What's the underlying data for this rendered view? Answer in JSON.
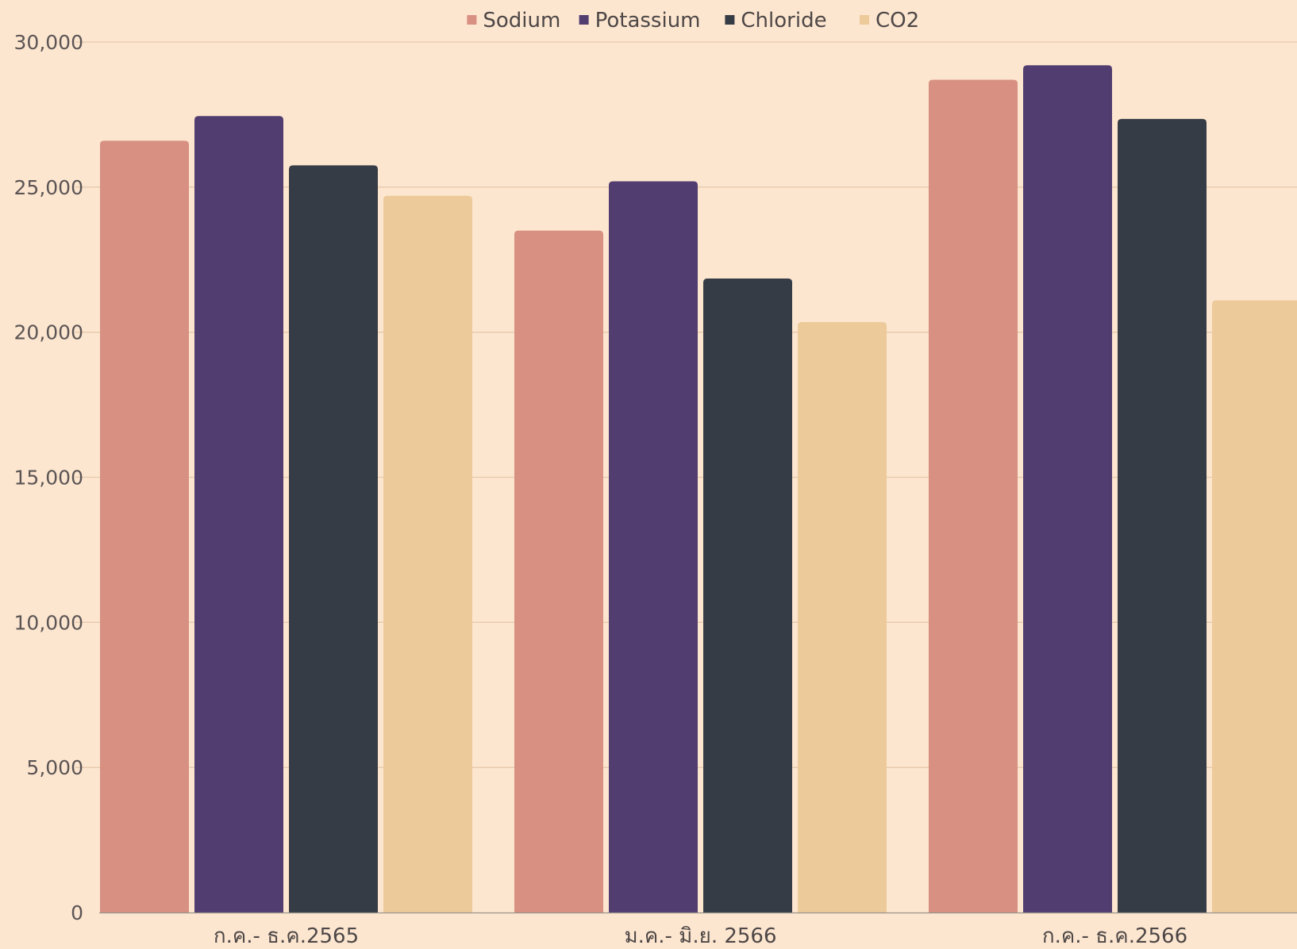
{
  "chart_data": {
    "type": "bar",
    "categories": [
      "ก.ค.- ธ.ค.2565",
      "ม.ค.- มิ.ย. 2566",
      "ก.ค.- ธ.ค.2566"
    ],
    "series": [
      {
        "name": "Sodium",
        "color": "#d79082",
        "values": [
          26600,
          23500,
          28700
        ]
      },
      {
        "name": "Potassium",
        "color": "#523d70",
        "values": [
          27450,
          25200,
          29200
        ]
      },
      {
        "name": "Chloride",
        "color": "#363c45",
        "values": [
          25750,
          21850,
          27350
        ]
      },
      {
        "name": "CO2",
        "color": "#ecca9a",
        "values": [
          24700,
          20350,
          21100
        ]
      }
    ],
    "y_ticks": [
      "0",
      "5,000",
      "10,000",
      "15,000",
      "20,000",
      "25,000",
      "30,000"
    ],
    "ylim": [
      0,
      30000
    ],
    "legend_position": "top-center",
    "grid": true,
    "gridline_color": "#e6c9ac",
    "background_color": "#fde6cf"
  }
}
